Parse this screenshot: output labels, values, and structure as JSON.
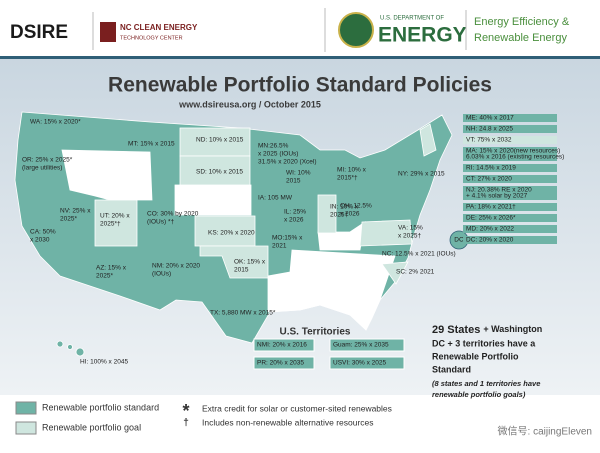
{
  "header": {
    "logo_left": "DSIRE",
    "logo_mid": [
      "NC CLEAN ENERGY",
      "TECHNOLOGY CENTER"
    ],
    "doe": [
      "U.S. DEPARTMENT OF",
      "ENERGY"
    ],
    "eere": [
      "Energy Efficiency &",
      "Renewable Energy"
    ]
  },
  "title": "Renewable Portfolio Standard Policies",
  "subtitle": "www.dsireusa.org / October 2015",
  "map_labels": [
    {
      "lines": [
        "WA: 15% x 2020*"
      ]
    },
    {
      "lines": [
        "OR: 25% x 2025*",
        "(large utilities)"
      ]
    },
    {
      "lines": [
        "MT: 15% x 2015"
      ]
    },
    {
      "lines": [
        "ND: 10% x 2015"
      ]
    },
    {
      "lines": [
        "MN:26.5%",
        "x 2025 (IOUs)",
        "31.5% x 2020 (Xcel)"
      ]
    },
    {
      "lines": [
        "SD: 10% x 2015"
      ]
    },
    {
      "lines": [
        "WI: 10%",
        "2015"
      ]
    },
    {
      "lines": [
        "MI: 10% x",
        "2015*†"
      ]
    },
    {
      "lines": [
        "NY: 29% x 2015"
      ]
    },
    {
      "lines": [
        "NV: 25% x",
        "2025*"
      ]
    },
    {
      "lines": [
        "UT: 20% x",
        "2025*†"
      ]
    },
    {
      "lines": [
        "CO: 30% by 2020",
        "(IOUs) *†"
      ]
    },
    {
      "lines": [
        "IA: 105 MW"
      ]
    },
    {
      "lines": [
        "IL: 25%",
        "x 2026"
      ]
    },
    {
      "lines": [
        "IN: 10% x",
        "2025†"
      ]
    },
    {
      "lines": [
        "OH: 12.5%",
        "x 2026"
      ]
    },
    {
      "lines": [
        "CA: 50%",
        "x 2030"
      ]
    },
    {
      "lines": [
        "KS: 20% x 2020"
      ]
    },
    {
      "lines": [
        "MO:15% x",
        "2021"
      ]
    },
    {
      "lines": [
        "VA: 15%",
        "x 2025†"
      ]
    },
    {
      "lines": [
        "NC: 12.5% x 2021 (IOUs)"
      ]
    },
    {
      "lines": [
        "AZ: 15% x",
        "2025*"
      ]
    },
    {
      "lines": [
        "NM: 20% x 2020",
        "(IOUs)"
      ]
    },
    {
      "lines": [
        "OK: 15% x",
        "2015"
      ]
    },
    {
      "lines": [
        "SC: 2% 2021"
      ]
    },
    {
      "lines": [
        "TX: 5,880 MW x 2015*"
      ]
    },
    {
      "lines": [
        "HI: 100% x 2045"
      ]
    },
    {
      "lines": [
        "DC"
      ]
    }
  ],
  "northeast": [
    {
      "lines": [
        "ME: 40% x 2017"
      ],
      "color": "#6fb3a6"
    },
    {
      "lines": [
        "NH: 24.8 x 2025"
      ],
      "color": "#6fb3a6"
    },
    {
      "lines": [
        "VT: 75% x 2032"
      ],
      "color": "#cfe6df"
    },
    {
      "lines": [
        "MA: 15% x 2020(new resources)",
        "6.03% x 2016 (existing resources)"
      ],
      "color": "#6fb3a6"
    },
    {
      "lines": [
        "RI: 14.5% x 2019"
      ],
      "color": "#6fb3a6"
    },
    {
      "lines": [
        "CT: 27% x 2020"
      ],
      "color": "#6fb3a6"
    },
    {
      "lines": [
        "NJ: 20.38% RE x 2020",
        "+ 4.1% solar by 2027"
      ],
      "color": "#6fb3a6"
    },
    {
      "lines": [
        "PA: 18% x 2021†"
      ],
      "color": "#6fb3a6"
    },
    {
      "lines": [
        "DE: 25% x 2026*"
      ],
      "color": "#6fb3a6"
    },
    {
      "lines": [
        "MD: 20% x 2022"
      ],
      "color": "#6fb3a6"
    },
    {
      "lines": [
        "DC: 20% x 2020"
      ],
      "color": "#6fb3a6"
    }
  ],
  "territories": {
    "title": "U.S. Territories",
    "items": [
      "NMI: 20% x 2016",
      "Guam: 25% x 2035",
      "PR: 20% x 2035",
      "USVI: 30% x 2025"
    ]
  },
  "summary": {
    "headline": [
      "29 States",
      "+ Washington",
      "DC + 3 territories have a",
      "Renewable Portfolio",
      "Standard"
    ],
    "note": [
      "(8 states and 1 territories have",
      "renewable portfolio goals)"
    ]
  },
  "legend": {
    "items": [
      {
        "label": "Renewable portfolio standard",
        "color": "#6fb3a6"
      },
      {
        "label": "Renewable portfolio goal",
        "color": "#cfe6df"
      }
    ],
    "notes": [
      {
        "symbol": "*",
        "label": "Extra credit for solar or customer-sited renewables"
      },
      {
        "symbol": "†",
        "label": "Includes non-renewable alternative resources"
      }
    ]
  },
  "watermark": "微信号: caijingEleven"
}
